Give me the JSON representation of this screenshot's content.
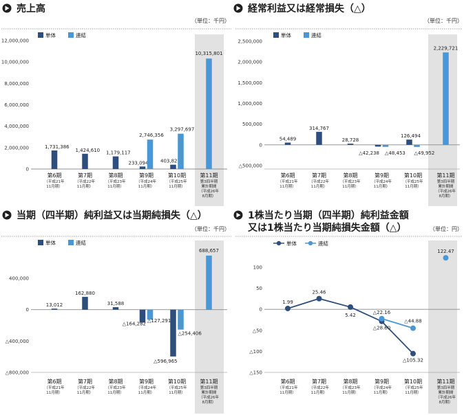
{
  "colors": {
    "single": "#2e4e7e",
    "consolidated": "#4a97d3",
    "highlight_bg": "#e2e2e2",
    "axis": "#888888"
  },
  "chart_data": [
    {
      "type": "bar",
      "title": "売上高",
      "unit": "（単位：千円）",
      "legend": [
        "単体",
        "連結"
      ],
      "categories": [
        {
          "name": "第6期",
          "sub": [
            "（平成21年",
            "11月期）"
          ]
        },
        {
          "name": "第7期",
          "sub": [
            "（平成22年",
            "11月期）"
          ]
        },
        {
          "name": "第8期",
          "sub": [
            "（平成23年",
            "11月期）"
          ]
        },
        {
          "name": "第9期",
          "sub": [
            "（平成24年",
            "11月期）"
          ]
        },
        {
          "name": "第10期",
          "sub": [
            "（平成25年",
            "11月期）"
          ]
        },
        {
          "name": "第11期",
          "sub": [
            "第3四半期",
            "累計期間",
            "（平成26年",
            "8月期）"
          ]
        }
      ],
      "series": [
        {
          "name": "単体",
          "values": [
            1731386,
            1424610,
            1179117,
            233094,
            403827,
            null
          ],
          "labels": [
            "1,731,386",
            "1,424,610",
            "1,179,117",
            "233,094",
            "403,827",
            ""
          ]
        },
        {
          "name": "連結",
          "values": [
            null,
            null,
            null,
            2746356,
            3297697,
            10315801
          ],
          "labels": [
            "",
            "",
            "",
            "2,746,356",
            "3,297,697",
            "10,315,801"
          ]
        }
      ],
      "yticks": [
        0,
        2000000,
        4000000,
        6000000,
        8000000,
        10000000,
        12000000
      ],
      "ytick_labels": [
        "0",
        "2,000,000",
        "4,000,000",
        "6,000,000",
        "8,000,000",
        "10,000,000",
        "12,000,000"
      ],
      "ylim": [
        0,
        12000000
      ]
    },
    {
      "type": "bar",
      "title": "経常利益又は経常損失（△）",
      "unit": "（単位：千円）",
      "legend": [
        "単体",
        "連結"
      ],
      "categories": [
        {
          "name": "第6期",
          "sub": [
            "（平成21年",
            "11月期）"
          ]
        },
        {
          "name": "第7期",
          "sub": [
            "（平成22年",
            "11月期）"
          ]
        },
        {
          "name": "第8期",
          "sub": [
            "（平成23年",
            "11月期）"
          ]
        },
        {
          "name": "第9期",
          "sub": [
            "（平成24年",
            "11月期）"
          ]
        },
        {
          "name": "第10期",
          "sub": [
            "（平成25年",
            "11月期）"
          ]
        },
        {
          "name": "第11期",
          "sub": [
            "第3四半期",
            "累計期間",
            "（平成26年",
            "8月期）"
          ]
        }
      ],
      "series": [
        {
          "name": "単体",
          "values": [
            54489,
            314767,
            28728,
            -42238,
            126494,
            null
          ],
          "labels": [
            "54,489",
            "314,767",
            "28,728",
            "△42,238",
            "126,494",
            ""
          ]
        },
        {
          "name": "連結",
          "values": [
            null,
            null,
            null,
            -48453,
            -49952,
            2229721
          ],
          "labels": [
            "",
            "",
            "",
            "△48,453",
            "△49,952",
            "2,229,721"
          ]
        }
      ],
      "yticks": [
        -500000,
        0,
        500000,
        1000000,
        1500000,
        2000000,
        2500000
      ],
      "ytick_labels": [
        "△500,000",
        "0",
        "500,000",
        "1,000,000",
        "1,500,000",
        "2,000,000",
        "2,500,000"
      ],
      "ylim": [
        -500000,
        2500000
      ]
    },
    {
      "type": "bar",
      "title": "当期（四半期）純利益又は当期純損失（△）",
      "unit": "（単位：千円）",
      "legend": [
        "単体",
        "連結"
      ],
      "categories": [
        {
          "name": "第6期",
          "sub": [
            "（平成21年",
            "11月期）"
          ]
        },
        {
          "name": "第7期",
          "sub": [
            "（平成22年",
            "11月期）"
          ]
        },
        {
          "name": "第8期",
          "sub": [
            "（平成23年",
            "11月期）"
          ]
        },
        {
          "name": "第9期",
          "sub": [
            "（平成24年",
            "11月期）"
          ]
        },
        {
          "name": "第10期",
          "sub": [
            "（平成25年",
            "11月期）"
          ]
        },
        {
          "name": "第11期",
          "sub": [
            "第3四半期",
            "累計期間",
            "（平成26年",
            "8月期）"
          ]
        }
      ],
      "series": [
        {
          "name": "単体",
          "values": [
            13012,
            162880,
            31588,
            -164282,
            -596965,
            null
          ],
          "labels": [
            "13,012",
            "162,880",
            "31,588",
            "△164,282",
            "△596,965",
            ""
          ]
        },
        {
          "name": "連結",
          "values": [
            null,
            null,
            null,
            -127291,
            -254406,
            688657
          ],
          "labels": [
            "",
            "",
            "",
            "△127,291",
            "△254,406",
            "688,657"
          ]
        }
      ],
      "yticks": [
        -800000,
        -400000,
        0,
        400000
      ],
      "ytick_labels": [
        "△800,000",
        "△400,000",
        "0",
        "400,000"
      ],
      "ylim": [
        -800000,
        800000
      ]
    },
    {
      "type": "line",
      "title": "1株当たり当期（四半期）純利益金額",
      "title2": "又は1株当たり当期純損失金額（△）",
      "unit": "（単位：円）",
      "legend": [
        "単体",
        "連結"
      ],
      "categories": [
        {
          "name": "第6期",
          "sub": [
            "（平成21年",
            "11月期）"
          ]
        },
        {
          "name": "第7期",
          "sub": [
            "（平成22年",
            "11月期）"
          ]
        },
        {
          "name": "第8期",
          "sub": [
            "（平成23年",
            "11月期）"
          ]
        },
        {
          "name": "第9期",
          "sub": [
            "（平成24年",
            "11月期）"
          ]
        },
        {
          "name": "第10期",
          "sub": [
            "（平成25年",
            "11月期）"
          ]
        },
        {
          "name": "第11期",
          "sub": [
            "第3四半期",
            "累計期間",
            "（平成26年",
            "8月期）"
          ]
        }
      ],
      "series": [
        {
          "name": "単体",
          "values": [
            1.99,
            25.46,
            5.42,
            -28.6,
            -105.32,
            null
          ],
          "labels": [
            "1.99",
            "25.46",
            "5.42",
            "△28.60",
            "△105.32",
            ""
          ]
        },
        {
          "name": "連結",
          "values": [
            null,
            null,
            null,
            -22.16,
            -44.88,
            122.47
          ],
          "labels": [
            "",
            "",
            "",
            "△22.16",
            "△44.88",
            "122.47"
          ]
        }
      ],
      "yticks": [
        -150,
        -100,
        -50,
        0,
        50,
        100
      ],
      "ytick_labels": [
        "△150",
        "△100",
        "△50",
        "0",
        "50",
        "100"
      ],
      "ylim": [
        -150,
        125
      ]
    }
  ]
}
